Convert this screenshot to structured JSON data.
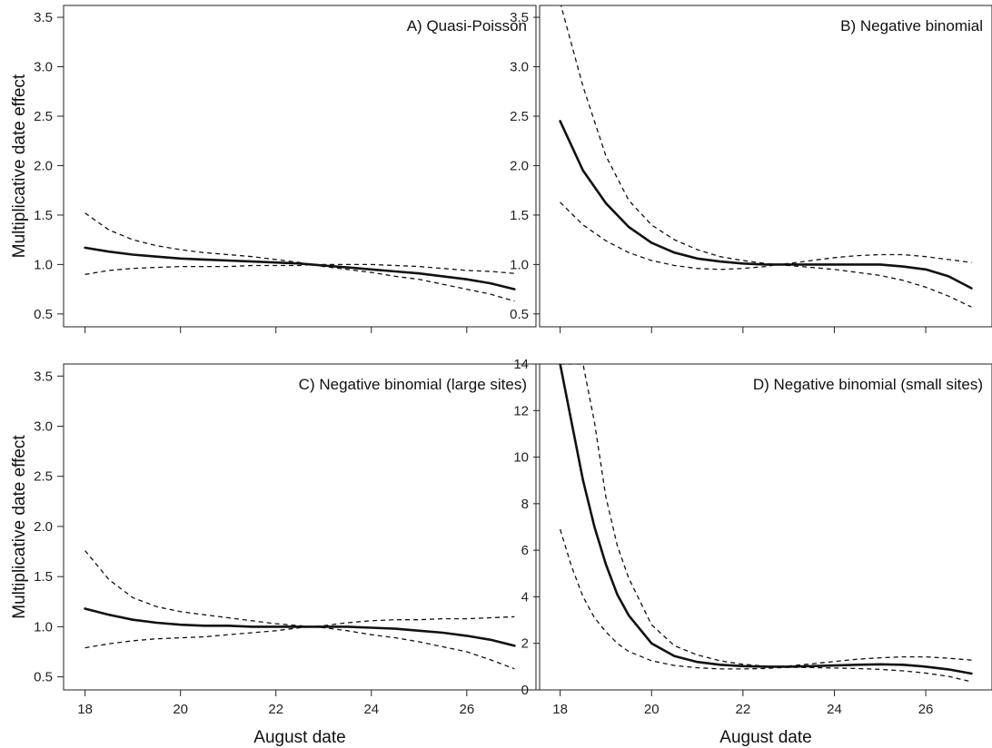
{
  "chart_data": [
    {
      "type": "line",
      "title": "A) Quasi-Poisson",
      "xlabel": "",
      "ylabel": "Multiplicative date effect",
      "xlim": [
        18,
        27
      ],
      "ylim": [
        0.5,
        3.5
      ],
      "xticks": [
        18,
        20,
        22,
        24,
        26
      ],
      "yticks": [
        0.5,
        1.0,
        1.5,
        2.0,
        2.5,
        3.0,
        3.5
      ],
      "ytick_labels": [
        "0.5",
        "1.0",
        "1.5",
        "2.0",
        "2.5",
        "3.0",
        "3.5"
      ],
      "show_xtick_labels": false,
      "x": [
        18,
        18.5,
        19,
        19.5,
        20,
        20.5,
        21,
        21.5,
        22,
        22.5,
        22.75,
        23,
        23.5,
        24,
        24.5,
        25,
        25.5,
        26,
        26.5,
        27
      ],
      "series": [
        {
          "style": "solid",
          "values": [
            1.17,
            1.13,
            1.1,
            1.08,
            1.06,
            1.05,
            1.04,
            1.03,
            1.02,
            1.01,
            1.0,
            0.99,
            0.97,
            0.95,
            0.93,
            0.91,
            0.88,
            0.85,
            0.81,
            0.75
          ]
        },
        {
          "style": "dashed",
          "values": [
            1.52,
            1.35,
            1.25,
            1.19,
            1.15,
            1.12,
            1.1,
            1.08,
            1.05,
            1.02,
            1.0,
            0.98,
            0.95,
            0.92,
            0.88,
            0.85,
            0.8,
            0.75,
            0.7,
            0.63
          ]
        },
        {
          "style": "dashed",
          "values": [
            0.9,
            0.94,
            0.96,
            0.97,
            0.98,
            0.98,
            0.98,
            0.99,
            0.99,
            0.99,
            1.0,
            1.0,
            1.0,
            1.0,
            0.99,
            0.98,
            0.96,
            0.94,
            0.93,
            0.91
          ]
        }
      ]
    },
    {
      "type": "line",
      "title": "B) Negative binomial",
      "xlabel": "",
      "ylabel": "",
      "xlim": [
        18,
        27
      ],
      "ylim": [
        0.5,
        3.5
      ],
      "xticks": [
        18,
        20,
        22,
        24,
        26
      ],
      "yticks": [
        0.5,
        1.0,
        1.5,
        2.0,
        2.5,
        3.0,
        3.5
      ],
      "ytick_labels": [
        "0.5",
        "1.0",
        "1.5",
        "2.0",
        "2.5",
        "3.0",
        "3.5"
      ],
      "show_xtick_labels": false,
      "x": [
        18,
        18.5,
        19,
        19.5,
        20,
        20.5,
        21,
        21.5,
        22,
        22.5,
        22.75,
        23,
        23.5,
        24,
        24.5,
        25,
        25.5,
        26,
        26.5,
        27
      ],
      "series": [
        {
          "style": "solid",
          "values": [
            2.45,
            1.95,
            1.62,
            1.38,
            1.22,
            1.12,
            1.06,
            1.03,
            1.01,
            1.0,
            1.0,
            1.0,
            1.0,
            1.0,
            1.0,
            1.0,
            0.98,
            0.95,
            0.88,
            0.76
          ]
        },
        {
          "style": "dashed",
          "values": [
            3.65,
            2.8,
            2.1,
            1.65,
            1.4,
            1.25,
            1.15,
            1.08,
            1.04,
            1.01,
            1.0,
            1.01,
            1.04,
            1.07,
            1.09,
            1.1,
            1.1,
            1.08,
            1.05,
            1.02
          ]
        },
        {
          "style": "dashed",
          "values": [
            1.63,
            1.4,
            1.24,
            1.12,
            1.04,
            0.99,
            0.96,
            0.95,
            0.96,
            0.98,
            1.0,
            0.99,
            0.97,
            0.95,
            0.92,
            0.89,
            0.84,
            0.77,
            0.68,
            0.57
          ]
        }
      ]
    },
    {
      "type": "line",
      "title": "C) Negative binomial (large sites)",
      "xlabel": "August date",
      "ylabel": "Multiplicative date effect",
      "xlim": [
        18,
        27
      ],
      "ylim": [
        0.5,
        3.5
      ],
      "xticks": [
        18,
        20,
        22,
        24,
        26
      ],
      "yticks": [
        0.5,
        1.0,
        1.5,
        2.0,
        2.5,
        3.0,
        3.5
      ],
      "ytick_labels": [
        "0.5",
        "1.0",
        "1.5",
        "2.0",
        "2.5",
        "3.0",
        "3.5"
      ],
      "show_xtick_labels": true,
      "x": [
        18,
        18.5,
        19,
        19.5,
        20,
        20.5,
        21,
        21.5,
        22,
        22.5,
        22.75,
        23,
        23.5,
        24,
        24.5,
        25,
        25.5,
        26,
        26.5,
        27
      ],
      "series": [
        {
          "style": "solid",
          "values": [
            1.18,
            1.12,
            1.07,
            1.04,
            1.02,
            1.01,
            1.01,
            1.0,
            1.0,
            1.0,
            1.0,
            1.0,
            1.0,
            0.99,
            0.98,
            0.96,
            0.94,
            0.91,
            0.87,
            0.81
          ]
        },
        {
          "style": "dashed",
          "values": [
            1.76,
            1.47,
            1.29,
            1.2,
            1.15,
            1.12,
            1.09,
            1.06,
            1.03,
            1.01,
            1.0,
            1.01,
            1.04,
            1.06,
            1.07,
            1.07,
            1.08,
            1.08,
            1.09,
            1.1
          ]
        },
        {
          "style": "dashed",
          "values": [
            0.79,
            0.83,
            0.86,
            0.88,
            0.89,
            0.9,
            0.92,
            0.94,
            0.96,
            0.99,
            1.0,
            0.99,
            0.96,
            0.92,
            0.89,
            0.85,
            0.8,
            0.75,
            0.67,
            0.58
          ]
        }
      ]
    },
    {
      "type": "line",
      "title": "D) Negative binomial (small sites)",
      "xlabel": "August date",
      "ylabel": "",
      "xlim": [
        18,
        27
      ],
      "ylim": [
        0,
        14
      ],
      "xticks": [
        18,
        20,
        22,
        24,
        26
      ],
      "yticks": [
        0,
        2,
        4,
        6,
        8,
        10,
        12,
        14
      ],
      "ytick_labels": [
        "0",
        "2",
        "4",
        "6",
        "8",
        "10",
        "12",
        "14"
      ],
      "show_xtick_labels": true,
      "x": [
        18,
        18.25,
        18.5,
        18.75,
        19,
        19.25,
        19.5,
        20,
        20.5,
        21,
        21.5,
        22,
        22.5,
        22.75,
        23,
        23.5,
        24,
        24.5,
        25,
        25.5,
        26,
        26.5,
        27
      ],
      "series": [
        {
          "style": "solid",
          "values": [
            14.0,
            11.5,
            9.0,
            7.0,
            5.4,
            4.1,
            3.2,
            2.0,
            1.45,
            1.2,
            1.08,
            1.02,
            1.0,
            1.0,
            1.0,
            1.02,
            1.05,
            1.08,
            1.1,
            1.08,
            1.0,
            0.88,
            0.7
          ]
        },
        {
          "style": "dashed",
          "values": [
            14.0,
            14.0,
            14.0,
            11.5,
            8.3,
            6.2,
            4.8,
            2.8,
            1.9,
            1.5,
            1.25,
            1.1,
            1.02,
            1.0,
            1.03,
            1.12,
            1.22,
            1.32,
            1.38,
            1.42,
            1.42,
            1.36,
            1.28
          ]
        },
        {
          "style": "dashed",
          "values": [
            6.9,
            5.3,
            4.0,
            3.1,
            2.5,
            2.0,
            1.65,
            1.25,
            1.05,
            0.95,
            0.9,
            0.9,
            0.92,
            0.95,
            0.97,
            0.96,
            0.94,
            0.92,
            0.88,
            0.82,
            0.72,
            0.58,
            0.35
          ]
        }
      ]
    }
  ]
}
